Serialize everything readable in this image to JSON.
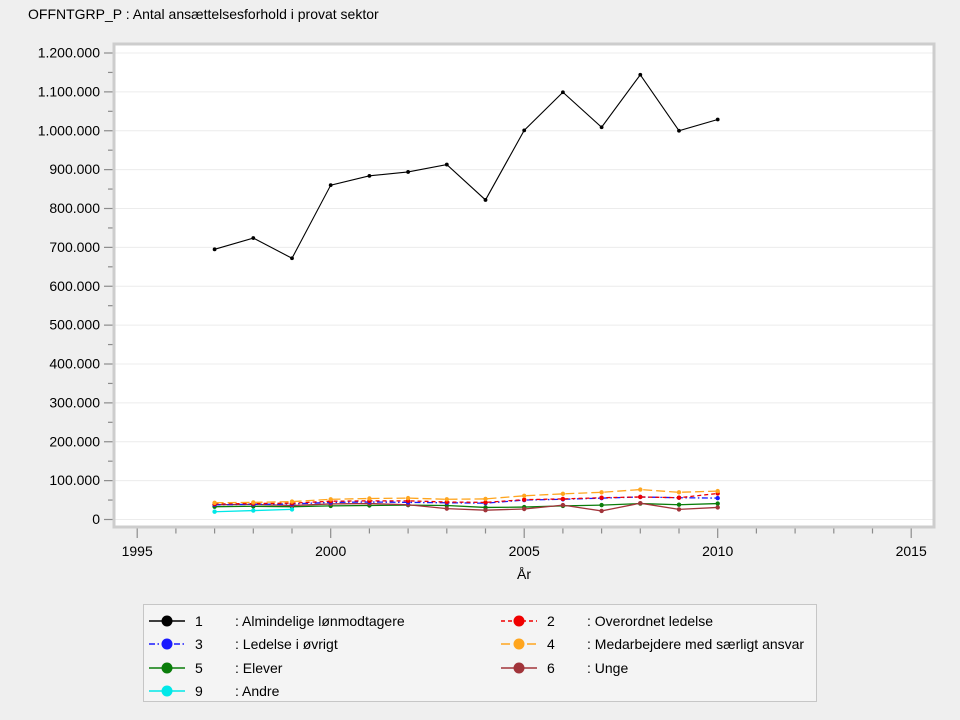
{
  "page": {
    "background": "#efefef",
    "plot_background": "#ffffff"
  },
  "chart_data": {
    "type": "line",
    "title": "OFFNTGRP_P : Antal ansættelsesforhold i provat sektor",
    "xlabel": "År",
    "ylabel": "",
    "grid": "horizontal",
    "legend_position": "bottom",
    "x": [
      1997,
      1998,
      1999,
      2000,
      2001,
      2002,
      2003,
      2004,
      2005,
      2006,
      2007,
      2008,
      2009,
      2010
    ],
    "x_axis": {
      "range": [
        1994.4,
        2015.6
      ],
      "major_ticks": [
        1995,
        2000,
        2005,
        2010,
        2015
      ],
      "major_tick_labels": [
        "1995",
        "2000",
        "2005",
        "2010",
        "2015"
      ],
      "minor_tick_step": 1
    },
    "y_axis": {
      "range": [
        0,
        1223000
      ],
      "major_tick_values": [
        0,
        100000,
        200000,
        300000,
        400000,
        500000,
        600000,
        700000,
        800000,
        900000,
        1000000,
        1100000,
        1200000
      ],
      "major_tick_labels": [
        "0",
        "100.000",
        "200.000",
        "300.000",
        "400.000",
        "500.000",
        "600.000",
        "700.000",
        "800.000",
        "900.000",
        "1.000.000",
        "1.100.000",
        "1.200.000"
      ],
      "minor_tick_step": 50000
    },
    "series": [
      {
        "id": "1",
        "label": ": Almindelige lønmodtagere",
        "color": "#000000",
        "line_style": "solid",
        "values": [
          695000,
          724000,
          672000,
          860000,
          884000,
          894000,
          913000,
          822000,
          1001000,
          1099000,
          1009000,
          1144000,
          1000000,
          1029000
        ]
      },
      {
        "id": "2",
        "label": ": Overordnet ledelse",
        "color": "#f00000",
        "line_style": "dashed",
        "values": [
          40000,
          41000,
          42000,
          47000,
          48000,
          48000,
          45000,
          44000,
          51000,
          53000,
          56000,
          58000,
          56000,
          67000
        ]
      },
      {
        "id": "3",
        "label": ": Ledelse i øvrigt",
        "color": "#1a1aff",
        "line_style": "dashdot",
        "values": [
          38000,
          39000,
          40000,
          44000,
          45000,
          44000,
          43000,
          42000,
          50000,
          52000,
          55000,
          58000,
          56000,
          55000
        ]
      },
      {
        "id": "4",
        "label": ": Medarbejdere med særligt ansvar",
        "color": "#ffa51e",
        "line_style": "longdash",
        "values": [
          43000,
          44000,
          46000,
          52000,
          54000,
          55000,
          52000,
          53000,
          61000,
          66000,
          70000,
          77000,
          70000,
          73000
        ]
      },
      {
        "id": "5",
        "label": ": Elever",
        "color": "#0a7d0a",
        "line_style": "solid",
        "values": [
          33000,
          34000,
          33000,
          35000,
          36000,
          37000,
          36000,
          31000,
          32000,
          35000,
          37000,
          41000,
          38000,
          41000
        ]
      },
      {
        "id": "6",
        "label": ": Unge",
        "color": "#a1343a",
        "line_style": "solid",
        "values": [
          38000,
          39000,
          36000,
          40000,
          41000,
          38000,
          28000,
          24000,
          27000,
          37000,
          22000,
          42000,
          26000,
          31000
        ]
      },
      {
        "id": "9",
        "label": ": Andre",
        "color": "#00e8e8",
        "line_style": "solid",
        "values": [
          20000,
          23000,
          26000,
          null,
          null,
          null,
          null,
          null,
          null,
          null,
          null,
          null,
          null,
          null
        ]
      }
    ],
    "legend_rows": [
      [
        "0",
        "1"
      ],
      [
        "2",
        "3"
      ],
      [
        "4",
        "5"
      ],
      [
        "6",
        null
      ]
    ]
  }
}
